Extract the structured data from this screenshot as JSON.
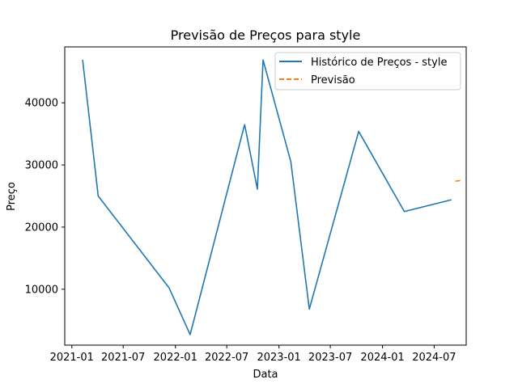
{
  "chart_data": {
    "type": "line",
    "title": "Previsão de Preços para style",
    "xlabel": "Data",
    "ylabel": "Preço",
    "x_ticks": [
      "2021-01",
      "2021-07",
      "2022-01",
      "2022-07",
      "2023-01",
      "2023-07",
      "2024-01",
      "2024-07"
    ],
    "y_ticks": [
      10000,
      20000,
      30000,
      40000
    ],
    "xlim": [
      "2020-12-07",
      "2024-10-22"
    ],
    "ylim": [
      1000,
      49000
    ],
    "legend_position": "top-right",
    "grid": false,
    "series": [
      {
        "name": "Histórico de Preços - style",
        "color": "#1f77b4",
        "style": "solid",
        "points": [
          {
            "x": "2021-02-08",
            "y": 46900
          },
          {
            "x": "2021-04-04",
            "y": 25000
          },
          {
            "x": "2021-12-10",
            "y": 10200
          },
          {
            "x": "2022-02-22",
            "y": 2700
          },
          {
            "x": "2022-09-02",
            "y": 36500
          },
          {
            "x": "2022-10-17",
            "y": 26100
          },
          {
            "x": "2022-11-06",
            "y": 46900
          },
          {
            "x": "2023-02-12",
            "y": 30500
          },
          {
            "x": "2023-04-18",
            "y": 6800
          },
          {
            "x": "2023-10-09",
            "y": 35400
          },
          {
            "x": "2024-03-18",
            "y": 22500
          },
          {
            "x": "2024-08-31",
            "y": 24400
          }
        ]
      },
      {
        "name": "Previsão",
        "color": "#ff7f0e",
        "style": "dashed",
        "points": [
          {
            "x": "2024-09-14",
            "y": 27400
          },
          {
            "x": "2024-10-05",
            "y": 27500
          }
        ]
      }
    ]
  }
}
